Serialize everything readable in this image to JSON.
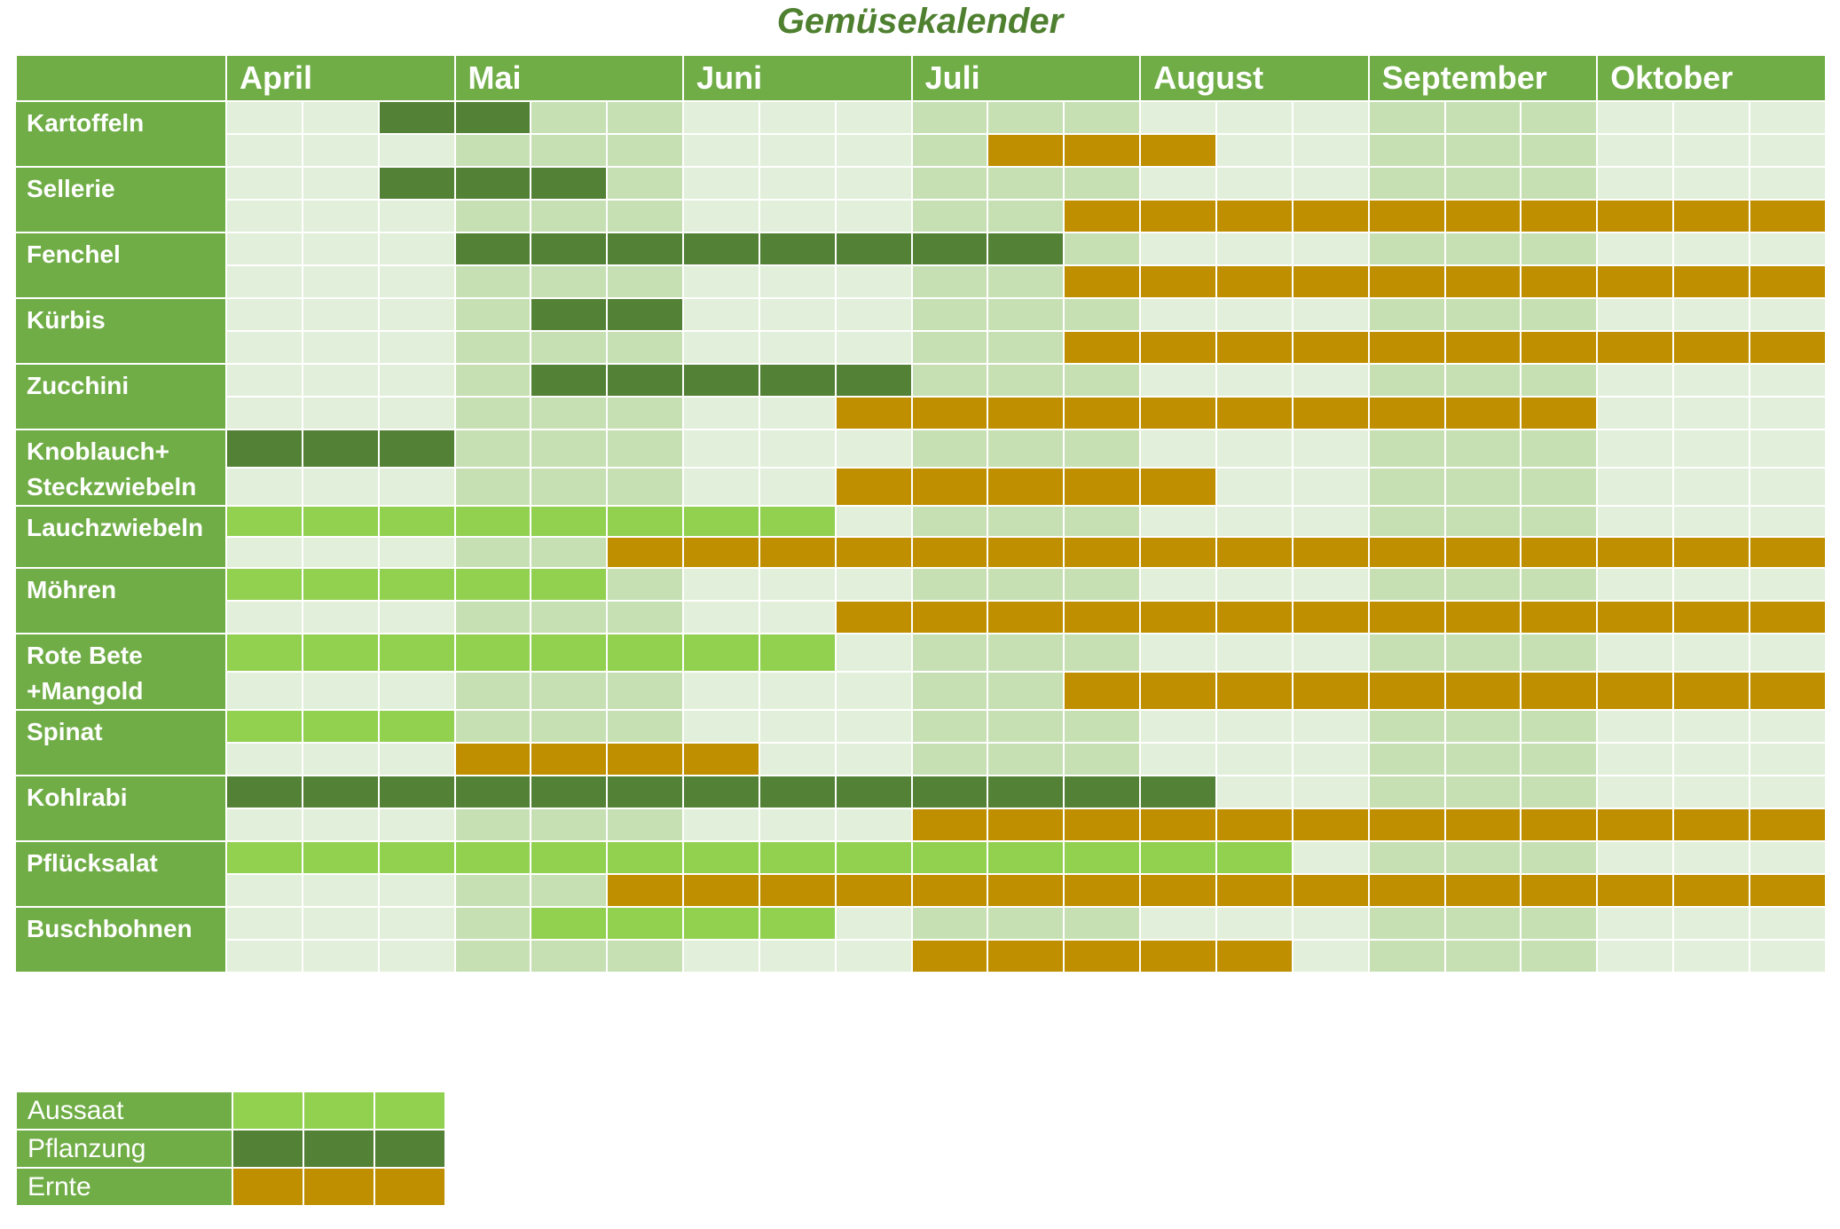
{
  "chart_data": {
    "type": "table",
    "title": "Gemüsekalender",
    "months": [
      "April",
      "Mai",
      "Juni",
      "Juli",
      "August",
      "September",
      "Oktober"
    ],
    "columns_per_month": 3,
    "colors": {
      "Aussaat": "#92d050",
      "Pflanzung": "#538135",
      "Ernte": "#bf8f00",
      "bg_light": "#e2efda",
      "bg_dark": "#c6e0b4",
      "header": "#70ad47"
    },
    "rows": [
      {
        "label": "Kartoffeln",
        "top": {
          "type": "Pflanzung",
          "start": 2,
          "end": 3
        },
        "bottom": {
          "type": "Ernte",
          "start": 10,
          "end": 12
        }
      },
      {
        "label": "Sellerie",
        "top": {
          "type": "Pflanzung",
          "start": 2,
          "end": 4
        },
        "bottom": {
          "type": "Ernte",
          "start": 11,
          "end": 20
        }
      },
      {
        "label": "Fenchel",
        "top": {
          "type": "Pflanzung",
          "start": 3,
          "end": 10
        },
        "bottom": {
          "type": "Ernte",
          "start": 11,
          "end": 20
        }
      },
      {
        "label": "Kürbis",
        "top": {
          "type": "Pflanzung",
          "start": 4,
          "end": 5
        },
        "bottom": {
          "type": "Ernte",
          "start": 11,
          "end": 20
        }
      },
      {
        "label": "Zucchini",
        "top": {
          "type": "Pflanzung",
          "start": 4,
          "end": 8
        },
        "bottom": {
          "type": "Ernte",
          "start": 8,
          "end": 17
        }
      },
      {
        "label": "Knoblauch+ Steckzwiebeln",
        "top": {
          "type": "Pflanzung",
          "start": 0,
          "end": 2
        },
        "bottom": {
          "type": "Ernte",
          "start": 8,
          "end": 12
        }
      },
      {
        "label": "Lauchzwiebeln",
        "top": {
          "type": "Aussaat",
          "start": 0,
          "end": 7
        },
        "bottom": {
          "type": "Ernte",
          "start": 5,
          "end": 20
        }
      },
      {
        "label": "Möhren",
        "top": {
          "type": "Aussaat",
          "start": 0,
          "end": 4
        },
        "bottom": {
          "type": "Ernte",
          "start": 8,
          "end": 20
        }
      },
      {
        "label": "Rote Bete +Mangold",
        "top": {
          "type": "Aussaat",
          "start": 0,
          "end": 7
        },
        "bottom": {
          "type": "Ernte",
          "start": 11,
          "end": 20
        }
      },
      {
        "label": "Spinat",
        "top": {
          "type": "Aussaat",
          "start": 0,
          "end": 2
        },
        "bottom": {
          "type": "Ernte",
          "start": 3,
          "end": 6
        }
      },
      {
        "label": "Kohlrabi",
        "top": {
          "type": "Pflanzung",
          "start": 0,
          "end": 12
        },
        "bottom": {
          "type": "Ernte",
          "start": 9,
          "end": 20
        }
      },
      {
        "label": "Pflücksalat",
        "top": {
          "type": "Aussaat",
          "start": 0,
          "end": 13
        },
        "bottom": {
          "type": "Ernte",
          "start": 5,
          "end": 20
        }
      },
      {
        "label": "Buschbohnen",
        "top": {
          "type": "Aussaat",
          "start": 4,
          "end": 7
        },
        "bottom": {
          "type": "Ernte",
          "start": 9,
          "end": 13
        }
      }
    ],
    "legend": [
      "Aussaat",
      "Pflanzung",
      "Ernte"
    ]
  }
}
